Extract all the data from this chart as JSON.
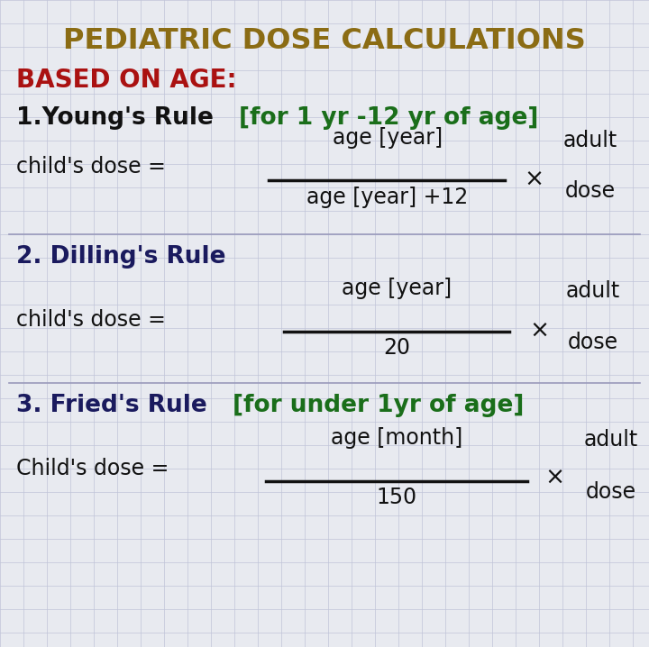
{
  "title": "PEDIATRIC DOSE CALCULATIONS",
  "title_color": "#8B6C14",
  "bg_color": "#E8EAF0",
  "grid_color": "#C0C4D8",
  "section1_label": "BASED ON AGE:",
  "section1_color": "#AA1111",
  "rule1_main": "1.Young's Rule",
  "rule1_bracket": "[for 1 yr -12 yr of age]",
  "rule1_main_color": "#111111",
  "rule1_bracket_color": "#1a6e1a",
  "rule1_lhs": "child's dose =",
  "rule1_num": "age [year]",
  "rule1_den": "age [year] +12",
  "rule1_x": "×",
  "rule1_adult": "adult",
  "rule1_dose": "dose",
  "rule2_main": "2. Dilling's Rule",
  "rule2_main_color": "#1a1a5e",
  "rule2_lhs": "child's dose =",
  "rule2_num": "age [year]",
  "rule2_den": "20",
  "rule2_x": "×",
  "rule2_adult": "adult",
  "rule2_dose": "dose",
  "rule3_main": "3. Fried's Rule",
  "rule3_bracket": "[for under 1yr of age]",
  "rule3_main_color": "#1a1a5e",
  "rule3_bracket_color": "#1a6e1a",
  "rule3_lhs": "Child's dose =",
  "rule3_num": "age [month]",
  "rule3_den": "150",
  "rule3_x": "×",
  "rule3_adult": "adult",
  "rule3_dose": "dose",
  "text_color": "#111111",
  "divider_color": "#9999bb"
}
